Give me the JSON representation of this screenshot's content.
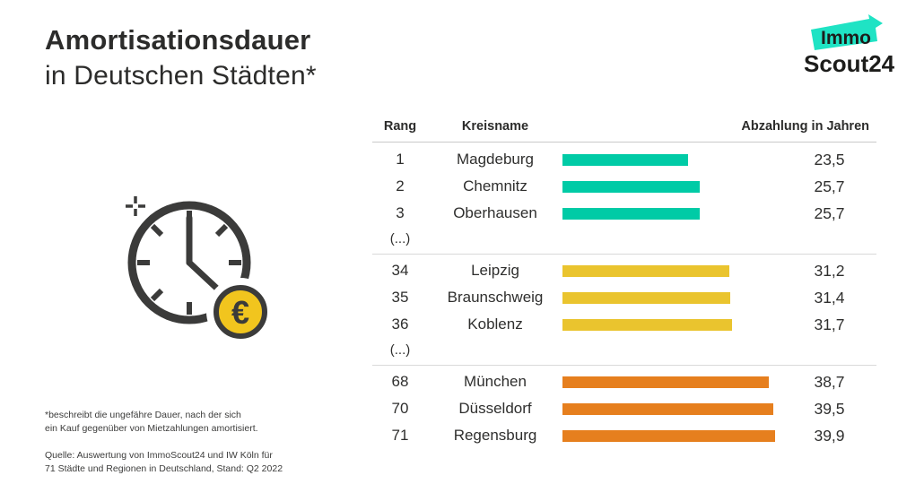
{
  "header": {
    "title_line1": "Amortisationsdauer",
    "title_line2": "in Deutschen Städten*"
  },
  "logo": {
    "line1": "Immo",
    "line2": "Scout24",
    "highlight_color": "#1FE3C4",
    "text_color": "#1d1d1b"
  },
  "table": {
    "columns": [
      "Rang",
      "Kreisname",
      "Abzahlung in Jahren"
    ],
    "ellipsis_label": "(...)",
    "groups": [
      {
        "color": "#00CBA6",
        "rows": [
          {
            "rank": "1",
            "name": "Magdeburg",
            "value_label": "23,5",
            "value": 23.5
          },
          {
            "rank": "2",
            "name": "Chemnitz",
            "value_label": "25,7",
            "value": 25.7
          },
          {
            "rank": "3",
            "name": "Oberhausen",
            "value_label": "25,7",
            "value": 25.7
          }
        ],
        "trailing_ellipsis": true
      },
      {
        "color": "#EAC42E",
        "rows": [
          {
            "rank": "34",
            "name": "Leipzig",
            "value_label": "31,2",
            "value": 31.2
          },
          {
            "rank": "35",
            "name": "Braunschweig",
            "value_label": "31,4",
            "value": 31.4
          },
          {
            "rank": "36",
            "name": "Koblenz",
            "value_label": "31,7",
            "value": 31.7
          }
        ],
        "trailing_ellipsis": true
      },
      {
        "color": "#E67F1E",
        "rows": [
          {
            "rank": "68",
            "name": "München",
            "value_label": "38,7",
            "value": 38.7
          },
          {
            "rank": "70",
            "name": "Düsseldorf",
            "value_label": "39,5",
            "value": 39.5
          },
          {
            "rank": "71",
            "name": "Regensburg",
            "value_label": "39,9",
            "value": 39.9
          }
        ],
        "trailing_ellipsis": false
      }
    ]
  },
  "footnote": {
    "line1": "*beschreibt die ungefähre Dauer, nach der sich",
    "line2": "ein Kauf gegenüber von Mietzahlungen amortisiert."
  },
  "source": {
    "line1": "Quelle: Auswertung von ImmoScout24 und IW Köln für",
    "line2": "71 Städte und Regionen in Deutschland, Stand: Q2 2022"
  },
  "icons": {
    "clock_color": "#3B3B3A",
    "coin_fill": "#F1C51E",
    "euro_symbol": "€"
  },
  "chart_data": {
    "type": "bar",
    "title": "Amortisationsdauer in Deutschen Städten*",
    "categories": [
      "Magdeburg",
      "Chemnitz",
      "Oberhausen",
      "Leipzig",
      "Braunschweig",
      "Koblenz",
      "München",
      "Düsseldorf",
      "Regensburg"
    ],
    "ranks": [
      1,
      2,
      3,
      34,
      35,
      36,
      68,
      70,
      71
    ],
    "values": [
      23.5,
      25.7,
      25.7,
      31.2,
      31.4,
      31.7,
      38.7,
      39.5,
      39.9
    ],
    "value_labels": [
      "23,5",
      "25,7",
      "25,7",
      "31,2",
      "31,4",
      "31,7",
      "38,7",
      "39,5",
      "39,9"
    ],
    "xlabel": "Abzahlung in Jahren",
    "ylabel": "Kreisname",
    "xlim": [
      0,
      40
    ],
    "grid": false,
    "legend_position": "none",
    "bar_colors_by_group": {
      "rank_1_3": "#00CBA6",
      "rank_34_36": "#EAC42E",
      "rank_68_71": "#E67F1E"
    },
    "orientation": "horizontal"
  }
}
